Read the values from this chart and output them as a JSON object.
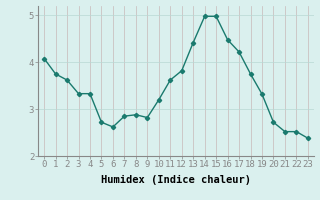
{
  "x": [
    0,
    1,
    2,
    3,
    4,
    5,
    6,
    7,
    8,
    9,
    10,
    11,
    12,
    13,
    14,
    15,
    16,
    17,
    18,
    19,
    20,
    21,
    22,
    23
  ],
  "y": [
    4.08,
    3.75,
    3.62,
    3.33,
    3.33,
    2.72,
    2.62,
    2.85,
    2.88,
    2.82,
    3.2,
    3.62,
    3.82,
    4.42,
    4.98,
    4.98,
    4.48,
    4.22,
    3.75,
    3.32,
    2.72,
    2.52,
    2.52,
    2.38
  ],
  "line_color": "#1a7a6e",
  "marker": "D",
  "marker_size": 2.2,
  "line_width": 1.0,
  "bg_color": "#daf0ee",
  "grid_color_v": "#c8b8b8",
  "grid_color_h": "#b8d8d4",
  "xlabel": "Humidex (Indice chaleur)",
  "ylim": [
    2.0,
    5.2
  ],
  "xlim": [
    -0.5,
    23.5
  ],
  "yticks": [
    2,
    3,
    4,
    5
  ],
  "xticks": [
    0,
    1,
    2,
    3,
    4,
    5,
    6,
    7,
    8,
    9,
    10,
    11,
    12,
    13,
    14,
    15,
    16,
    17,
    18,
    19,
    20,
    21,
    22,
    23
  ],
  "tick_fontsize": 6.5,
  "label_fontsize": 7.5,
  "spine_color": "#888888"
}
